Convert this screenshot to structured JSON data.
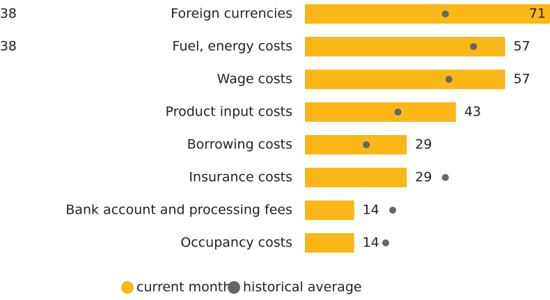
{
  "chart_data": {
    "type": "bar",
    "orientation": "horizontal",
    "categories": [
      "Foreign currencies",
      "Fuel, energy costs",
      "Wage costs",
      "Product input costs",
      "Borrowing costs",
      "Insurance costs",
      "Bank account and processing fees",
      "Occupancy costs"
    ],
    "series": [
      {
        "name": "current month",
        "color": "#fbb617",
        "values": [
          71,
          57,
          57,
          43,
          29,
          29,
          14,
          14
        ]
      },
      {
        "name": "historical average",
        "color": "#666666",
        "marker": "dot",
        "values": [
          40,
          48,
          41,
          26.5,
          17.5,
          40,
          25,
          23
        ]
      }
    ],
    "xlim": [
      0,
      70
    ],
    "annotations": [
      "38",
      "38"
    ],
    "legend": "bottom"
  }
}
